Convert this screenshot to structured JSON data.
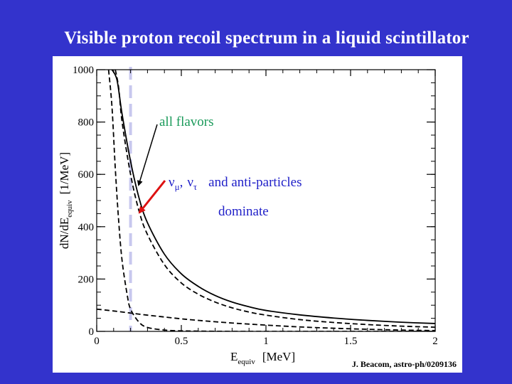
{
  "slide": {
    "title": "Visible proton recoil spectrum in a liquid scintillator",
    "credit": "J. Beacom, astro-ph/0209136",
    "background_color": "#3333cc"
  },
  "annotations": {
    "all_flavors": "all flavors",
    "nu_mu": "ν",
    "sub_mu": "μ",
    "comma": ",",
    "nu_tau": "ν",
    "sub_tau": "τ",
    "anti": "and anti-particles",
    "dominate": "dominate",
    "arrow_color": "#dd1111"
  },
  "chart_data": {
    "type": "line",
    "xlabel": "E",
    "xlabel_sub": "equiv",
    "xlabel_unit": "[MeV]",
    "ylabel": "dN/dE",
    "ylabel_sub": "equiv",
    "ylabel_unit": "[1/MeV]",
    "xlim": [
      0,
      2
    ],
    "ylim": [
      0,
      1000
    ],
    "x_ticks": [
      0,
      0.5,
      1,
      1.5,
      2
    ],
    "x_tick_labels": [
      "0",
      "0.5",
      "1",
      "1.5",
      "2"
    ],
    "y_ticks": [
      0,
      200,
      400,
      600,
      800,
      1000
    ],
    "y_tick_labels": [
      "0",
      "200",
      "400",
      "600",
      "800",
      "1000"
    ],
    "threshold": {
      "x": 0.2,
      "color": "#c8c8ee"
    },
    "grid": false,
    "series": [
      {
        "style": "solid",
        "x": [
          0.09,
          0.12,
          0.15,
          0.2,
          0.25,
          0.3,
          0.4,
          0.5,
          0.6,
          0.7,
          0.8,
          0.9,
          1.0,
          1.2,
          1.4,
          1.6,
          1.8,
          2.0
        ],
        "y": [
          1000,
          960,
          830,
          650,
          510,
          415,
          295,
          220,
          172,
          137,
          112,
          94,
          80,
          63,
          51,
          42,
          35,
          30
        ]
      },
      {
        "style": "dashed",
        "x": [
          0.11,
          0.13,
          0.15,
          0.2,
          0.25,
          0.3,
          0.4,
          0.5,
          0.6,
          0.7,
          0.8,
          0.9,
          1.0,
          1.2,
          1.4,
          1.6,
          1.8,
          2.0
        ],
        "y": [
          1000,
          930,
          800,
          600,
          460,
          370,
          255,
          185,
          142,
          112,
          90,
          74,
          62,
          45,
          34,
          26,
          20,
          16
        ]
      },
      {
        "style": "dashed",
        "x": [
          0.07,
          0.09,
          0.11,
          0.13,
          0.15,
          0.18,
          0.2,
          0.25,
          0.3,
          0.4,
          0.5,
          0.6,
          0.8,
          1.0,
          1.2,
          1.5,
          2.0
        ],
        "y": [
          1000,
          860,
          620,
          420,
          270,
          140,
          85,
          35,
          15,
          5,
          2,
          1,
          0,
          0,
          0,
          0,
          0
        ]
      },
      {
        "style": "dashed",
        "x": [
          0.0,
          0.1,
          0.2,
          0.3,
          0.4,
          0.5,
          0.6,
          0.8,
          1.0,
          1.2,
          1.4,
          1.6,
          1.8,
          2.0
        ],
        "y": [
          85,
          78,
          70,
          62,
          55,
          48,
          42,
          32,
          24,
          17,
          12,
          8,
          5,
          3
        ]
      }
    ]
  }
}
